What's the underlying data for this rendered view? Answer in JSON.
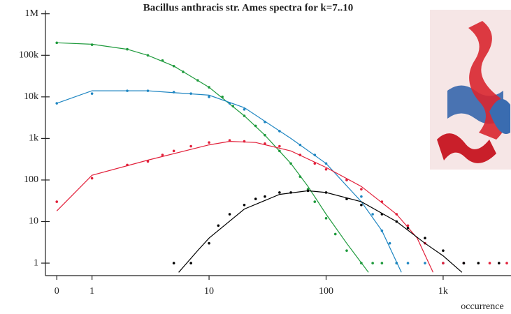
{
  "chart_data": {
    "type": "scatter",
    "title": "Bacillus anthracis str. Ames spectra for k=7..10",
    "x_label": "occurrence",
    "x_scale": "log",
    "y_scale": "log",
    "xlim": [
      0.4,
      3800
    ],
    "ylim": [
      0.5,
      1200000
    ],
    "xticks": [
      0,
      1,
      10,
      100,
      {
        "value": 1000,
        "label": "1k"
      }
    ],
    "yticks": [
      1,
      10,
      100,
      {
        "value": 1000,
        "label": "1k"
      },
      {
        "value": 10000,
        "label": "10k"
      },
      {
        "value": 100000,
        "label": "100k"
      },
      {
        "value": 1000000,
        "label": "1M"
      }
    ],
    "series": [
      {
        "color": "#1e9a3c",
        "x": [
          0,
          1,
          2,
          3,
          4,
          5,
          6,
          8,
          10,
          13,
          16,
          20,
          25,
          30,
          40,
          50,
          60,
          70,
          80,
          100,
          120,
          150,
          200,
          250,
          300,
          400
        ],
        "values": [
          200000,
          180000,
          140000,
          100000,
          75000,
          55000,
          40000,
          25000,
          17000,
          10000,
          6000,
          3500,
          2000,
          1200,
          500,
          250,
          120,
          60,
          30,
          12,
          5,
          2,
          1,
          1,
          1,
          1
        ],
        "fit_x": [
          0,
          1,
          2,
          3,
          5,
          10,
          20,
          30,
          50,
          70,
          100,
          150,
          230
        ],
        "fit_values": [
          200000,
          185000,
          140000,
          100000,
          55000,
          17000,
          3500,
          1200,
          250,
          70,
          15,
          3,
          0.6
        ]
      },
      {
        "color": "#1f86c2",
        "x": [
          0,
          1,
          2,
          3,
          5,
          7,
          10,
          15,
          20,
          30,
          40,
          60,
          80,
          100,
          150,
          200,
          250,
          300,
          350,
          400,
          500,
          700,
          1000,
          1500
        ],
        "values": [
          7000,
          12000,
          14000,
          14000,
          13000,
          12000,
          10000,
          7000,
          5000,
          2500,
          1500,
          700,
          400,
          250,
          100,
          40,
          15,
          6,
          3,
          1,
          1,
          1,
          1,
          1
        ],
        "fit_x": [
          0,
          1,
          3,
          10,
          20,
          50,
          100,
          200,
          300,
          440
        ],
        "fit_values": [
          7000,
          14000,
          14000,
          11000,
          5500,
          1000,
          250,
          30,
          6,
          0.6
        ]
      },
      {
        "color": "#e2203a",
        "x": [
          0,
          1,
          2,
          3,
          4,
          5,
          7,
          10,
          15,
          20,
          30,
          40,
          60,
          80,
          100,
          150,
          200,
          300,
          400,
          500,
          700,
          1000,
          1500,
          2500,
          3500
        ],
        "values": [
          30,
          110,
          230,
          280,
          400,
          500,
          650,
          800,
          900,
          850,
          750,
          650,
          400,
          250,
          180,
          100,
          60,
          30,
          15,
          8,
          3,
          1,
          1,
          1,
          1
        ],
        "fit_x": [
          0,
          1,
          3,
          10,
          15,
          25,
          50,
          100,
          200,
          400,
          600,
          820
        ],
        "fit_values": [
          18,
          130,
          300,
          700,
          850,
          800,
          500,
          200,
          70,
          15,
          4,
          0.6
        ]
      },
      {
        "color": "#000000",
        "x": [
          5,
          7,
          10,
          12,
          15,
          20,
          25,
          30,
          40,
          50,
          70,
          100,
          150,
          200,
          300,
          400,
          500,
          700,
          1000,
          1500,
          2000,
          3000
        ],
        "values": [
          1,
          1,
          3,
          8,
          15,
          25,
          35,
          40,
          50,
          50,
          55,
          50,
          35,
          25,
          15,
          10,
          7,
          4,
          2,
          1,
          1,
          1
        ],
        "fit_x": [
          5.5,
          8,
          10,
          20,
          40,
          70,
          100,
          200,
          400,
          700,
          1000,
          1450
        ],
        "fit_values": [
          0.6,
          2,
          4,
          20,
          45,
          55,
          50,
          30,
          10,
          3,
          1.5,
          0.6
        ]
      }
    ]
  }
}
